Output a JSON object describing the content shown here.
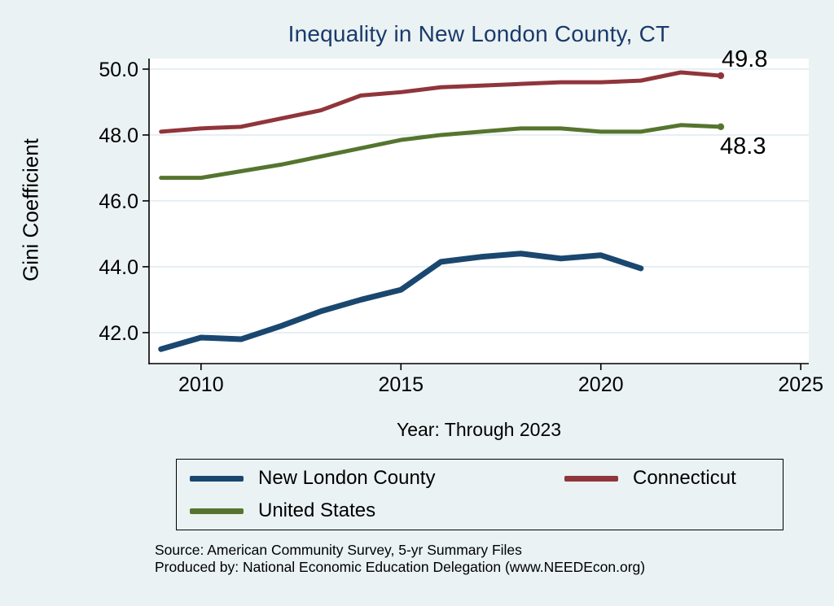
{
  "title": "Inequality in New London County, CT",
  "colors": {
    "background": "#eaf2f3",
    "plot_background": "#ffffff",
    "gridline": "#d3e3eb",
    "title": "#1b3a6b",
    "navy": "#1a476f",
    "maroon": "#90353b",
    "green": "#55752f"
  },
  "legend": {
    "position": "bottom",
    "items": [
      {
        "label": "New London County",
        "color": "#1a476f"
      },
      {
        "label": "Connecticut",
        "color": "#90353b"
      },
      {
        "label": "United States",
        "color": "#55752f"
      }
    ]
  },
  "notes": {
    "line1": "Source: American Community Survey, 5-yr Summary Files",
    "line2": "Produced by: National Economic Education Delegation (www.NEEDEcon.org)"
  },
  "chart_data": {
    "type": "line",
    "title": "Inequality in New London County, CT",
    "xlabel": "Year: Through 2023",
    "ylabel": "Gini Coefficient",
    "grid": "horizontal",
    "x": [
      2009,
      2010,
      2011,
      2012,
      2013,
      2014,
      2015,
      2016,
      2017,
      2018,
      2019,
      2020,
      2021,
      2022,
      2023
    ],
    "x_ticks": [
      2010,
      2015,
      2020,
      2025
    ],
    "x_tick_labels": [
      "2010",
      "2015",
      "2020",
      "2025"
    ],
    "y_ticks": [
      42,
      44,
      46,
      48,
      50
    ],
    "y_tick_labels": [
      "42.0",
      "44.0",
      "46.0",
      "48.0",
      "50.0"
    ],
    "xlim": [
      2008.7,
      2025.2
    ],
    "ylim": [
      41.06,
      50.32
    ],
    "series": [
      {
        "id": "new-london-county",
        "name": "New London County",
        "color": "#1a476f",
        "width": 7,
        "end_marker": false,
        "end_label": "",
        "values": [
          41.5,
          41.85,
          41.8,
          42.2,
          42.65,
          43.0,
          43.3,
          44.15,
          44.3,
          44.4,
          44.25,
          44.35,
          43.95,
          null,
          null
        ]
      },
      {
        "id": "connecticut",
        "name": "Connecticut",
        "color": "#90353b",
        "width": 5,
        "end_marker": true,
        "end_label": "49.8",
        "values": [
          48.1,
          48.2,
          48.25,
          48.5,
          48.75,
          49.2,
          49.3,
          49.45,
          49.5,
          49.55,
          49.6,
          49.6,
          49.65,
          49.9,
          49.8
        ]
      },
      {
        "id": "united-states",
        "name": "United States",
        "color": "#55752f",
        "width": 5,
        "end_marker": true,
        "end_label": "48.3",
        "values": [
          46.7,
          46.7,
          46.9,
          47.1,
          47.35,
          47.6,
          47.85,
          48.0,
          48.1,
          48.2,
          48.2,
          48.1,
          48.1,
          48.3,
          48.25
        ]
      }
    ]
  }
}
